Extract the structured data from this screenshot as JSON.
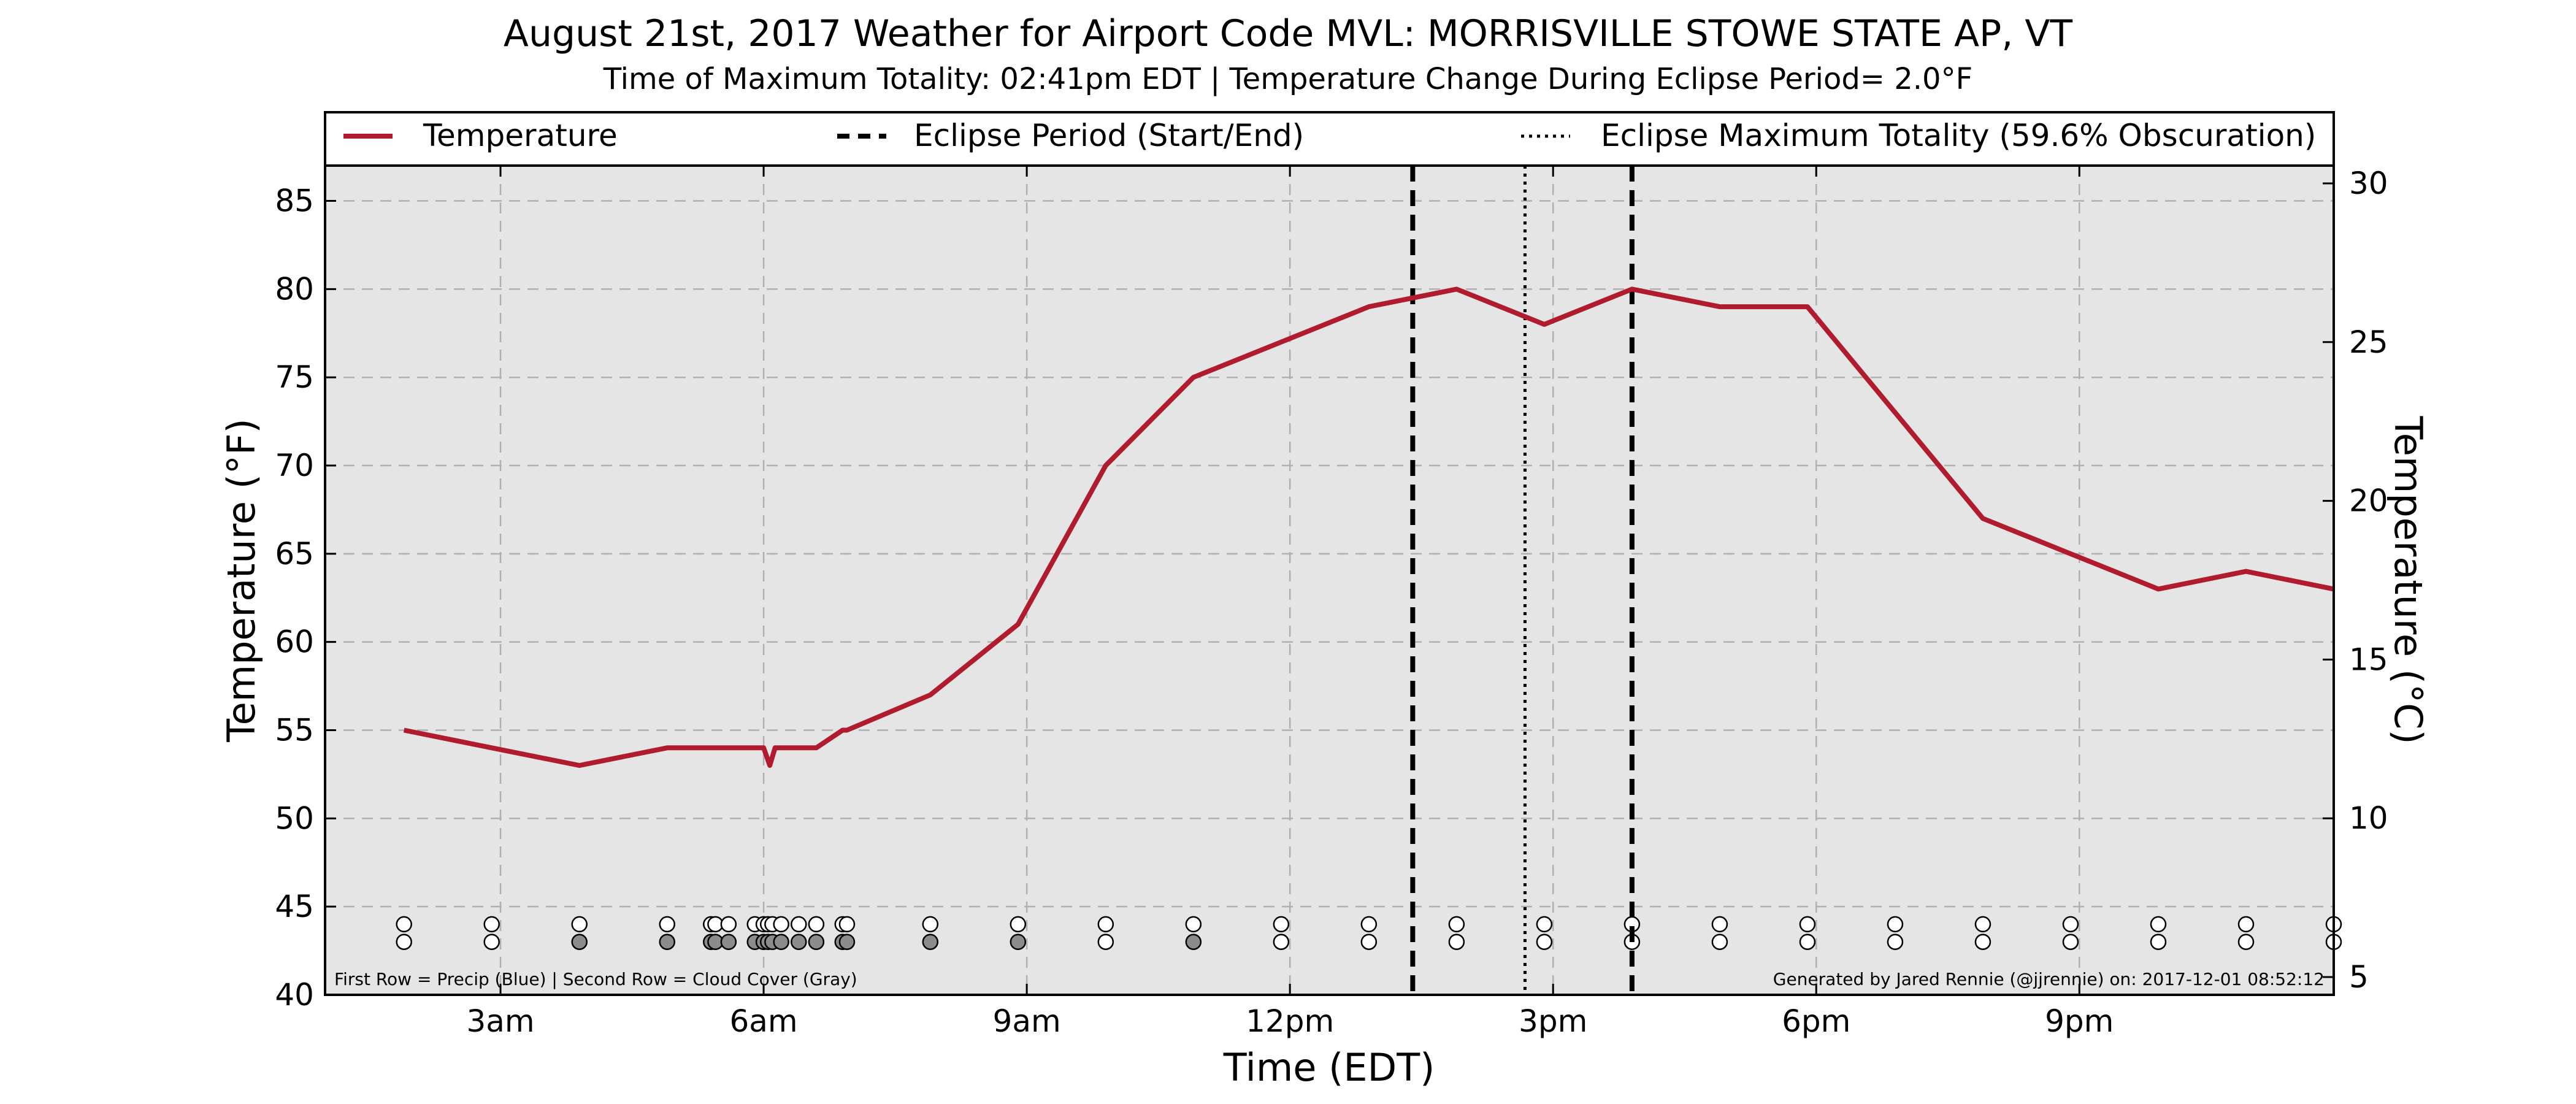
{
  "title": "August 21st, 2017 Weather for Airport Code MVL: MORRISVILLE STOWE STATE AP, VT",
  "subtitle": "Time of Maximum Totality: 02:41pm EDT | Temperature Change During Eclipse Period= 2.0°F",
  "legend": {
    "temperature": "Temperature",
    "eclipse_period": "Eclipse Period (Start/End)",
    "eclipse_max": "Eclipse Maximum Totality (59.6% Obscuration)"
  },
  "footnote_left": "First Row = Precip (Blue) | Second Row = Cloud Cover (Gray)",
  "footnote_right": "Generated by Jared Rennie (@jjrennie) on: 2017-12-01 08:52:12",
  "colors": {
    "temperature_line": "#b01c2e",
    "plot_background": "#e5e5e5",
    "grid": "#b0b0b0",
    "cloud_fill": "#8c8c8c"
  },
  "chart_data": {
    "type": "line",
    "xlabel": "Time (EDT)",
    "ylabel": "Temperature (°F)",
    "ylabel_right": "Temperature (°C)",
    "xlim": [
      1,
      23.9
    ],
    "ylim": [
      40,
      87
    ],
    "ylim_right_c": [
      4.44,
      30.56
    ],
    "x_ticks": [
      3,
      6,
      9,
      12,
      15,
      18,
      21
    ],
    "x_tick_labels": [
      "3am",
      "6am",
      "9am",
      "12pm",
      "3pm",
      "6pm",
      "9pm"
    ],
    "y_ticks": [
      40,
      45,
      50,
      55,
      60,
      65,
      70,
      75,
      80,
      85
    ],
    "y_ticks_right": [
      5,
      10,
      15,
      20,
      25,
      30
    ],
    "grid": true,
    "legend_position": "top",
    "series": [
      {
        "name": "Temperature",
        "x": [
          1.9,
          2.9,
          3.9,
          4.9,
          5.9,
          6.0,
          6.07,
          6.13,
          6.6,
          6.9,
          6.95,
          7.9,
          8.9,
          9.9,
          10.9,
          11.9,
          12.9,
          13.9,
          14.9,
          15.9,
          16.9,
          17.9,
          18.9,
          19.9,
          20.9,
          21.9,
          22.9,
          23.9
        ],
        "values": [
          55,
          54,
          53,
          54,
          54,
          54,
          53,
          54,
          54,
          55,
          55,
          57,
          61,
          70,
          75,
          77,
          79,
          80,
          78,
          80,
          79,
          79,
          73,
          67,
          65,
          63,
          64,
          63
        ]
      }
    ],
    "eclipse_start_x": 13.4,
    "eclipse_end_x": 15.9,
    "eclipse_max_x": 14.68,
    "observations": {
      "row1_temp_f": 44,
      "row2_temp_f": 43,
      "x": [
        1.9,
        2.9,
        3.9,
        4.9,
        5.4,
        5.45,
        5.6,
        5.9,
        6.0,
        6.05,
        6.1,
        6.2,
        6.4,
        6.6,
        6.9,
        6.95,
        7.9,
        8.9,
        9.9,
        10.9,
        11.9,
        12.9,
        13.9,
        14.9,
        15.9,
        16.9,
        17.9,
        18.9,
        19.9,
        20.9,
        21.9,
        22.9,
        23.9
      ],
      "cloud_gray": [
        false,
        false,
        true,
        true,
        true,
        true,
        true,
        true,
        true,
        true,
        true,
        true,
        true,
        true,
        true,
        true,
        true,
        true,
        false,
        true,
        false,
        false,
        false,
        false,
        false,
        false,
        false,
        false,
        false,
        false,
        false,
        false,
        false
      ]
    }
  }
}
